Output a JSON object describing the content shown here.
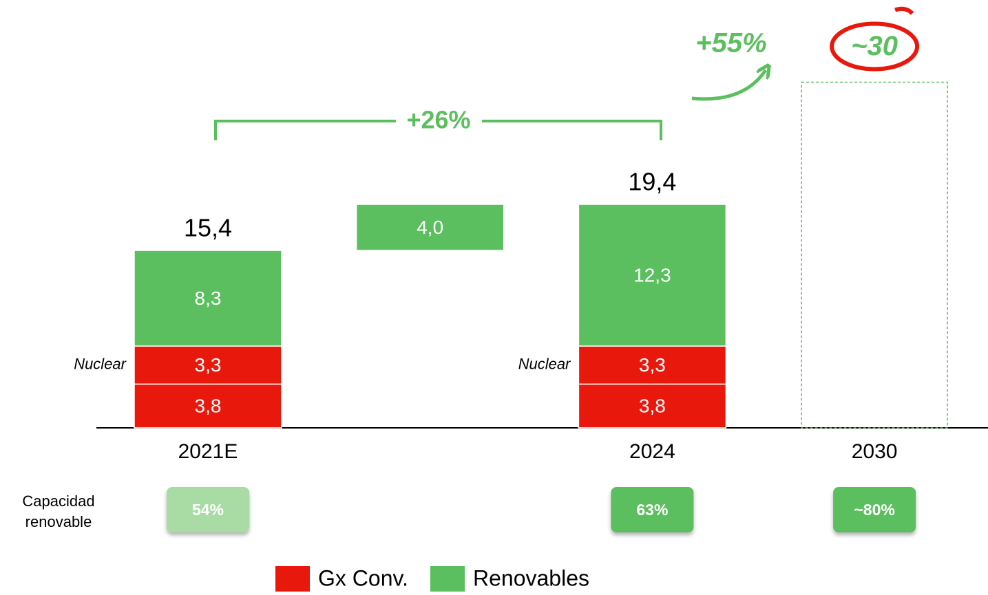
{
  "chart_data": {
    "type": "waterfall",
    "categories": [
      "2021E",
      null,
      "2024",
      "2030"
    ],
    "series": [
      {
        "name": "Gx Conv.",
        "color": "#e8180c",
        "values": [
          3.8,
          null,
          3.8,
          null
        ],
        "value_labels": [
          "3,8",
          null,
          "3,8",
          null
        ]
      },
      {
        "name": "Nuclear",
        "color": "#e8180c",
        "values": [
          3.3,
          null,
          3.3,
          null
        ],
        "value_labels": [
          "3,3",
          null,
          "3,3",
          null
        ]
      },
      {
        "name": "Renovables",
        "color": "#5cbf5f",
        "values": [
          8.3,
          4.0,
          12.3,
          null
        ],
        "value_labels": [
          "8,3",
          "4,0",
          "12,3",
          null
        ]
      }
    ],
    "totals": [
      15.4,
      null,
      19.4,
      30
    ],
    "totals_labels": [
      "15,4",
      null,
      "19,4",
      "~30"
    ],
    "legend": [
      "Gx Conv.",
      "Renovables"
    ],
    "growth": [
      "+26%",
      "+55%"
    ],
    "renewable_share": {
      "label": "Capacidad renovable",
      "values": [
        54,
        null,
        63,
        80
      ],
      "value_labels": [
        "54%",
        null,
        "63%",
        "~80%"
      ],
      "colors": [
        "#a9dba5",
        null,
        "#5cbf5f",
        "#5cbf5f"
      ]
    }
  }
}
